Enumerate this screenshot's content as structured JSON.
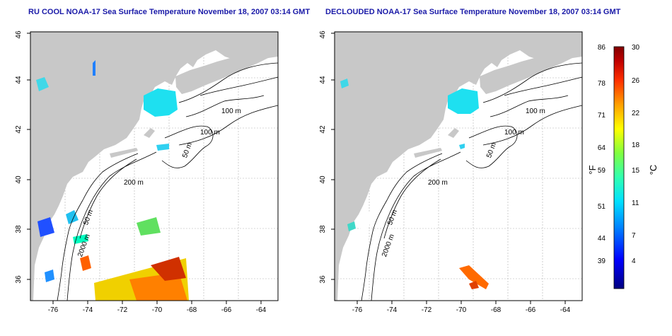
{
  "panels": [
    {
      "title": "RU COOL NOAA-17 Sea Surface Temperature November 18, 2007 03:14 GMT",
      "x_ticks": [
        "-76",
        "-74",
        "-72",
        "-70",
        "-68",
        "-66",
        "-64"
      ],
      "y_ticks": [
        "36",
        "38",
        "40",
        "42",
        "44",
        "46"
      ],
      "contour_labels": [
        "100 m",
        "100 m",
        "50 m",
        "200 m",
        "50 m",
        "2000 m"
      ]
    },
    {
      "title": "DECLOUDED NOAA-17 Sea Surface Temperature November 18, 2007 03:14 GMT",
      "x_ticks": [
        "-76",
        "-74",
        "-72",
        "-70",
        "-68",
        "-66",
        "-64"
      ],
      "y_ticks": [
        "36",
        "38",
        "40",
        "42",
        "44",
        "46"
      ],
      "contour_labels": [
        "100 m",
        "100 m",
        "50 m",
        "200 m",
        "50 m",
        "2000 m"
      ]
    }
  ],
  "colorbar": {
    "f_label": "°F",
    "c_label": "°C",
    "f_ticks": [
      "86",
      "78",
      "71",
      "64",
      "59",
      "51",
      "44",
      "39"
    ],
    "c_ticks": [
      "30",
      "26",
      "22",
      "18",
      "15",
      "11",
      "7",
      "4"
    ],
    "colors": [
      "#000080",
      "#0000ff",
      "#0080ff",
      "#00e0ff",
      "#30ffb0",
      "#80ff40",
      "#ffff00",
      "#ffa000",
      "#ff3000",
      "#c00000",
      "#800000"
    ]
  },
  "colors": {
    "land": "#c8c8c8",
    "ocean": "#ffffff",
    "contour": "#000000",
    "grid": "#b0b0b0",
    "title": "#1a1aa8"
  }
}
